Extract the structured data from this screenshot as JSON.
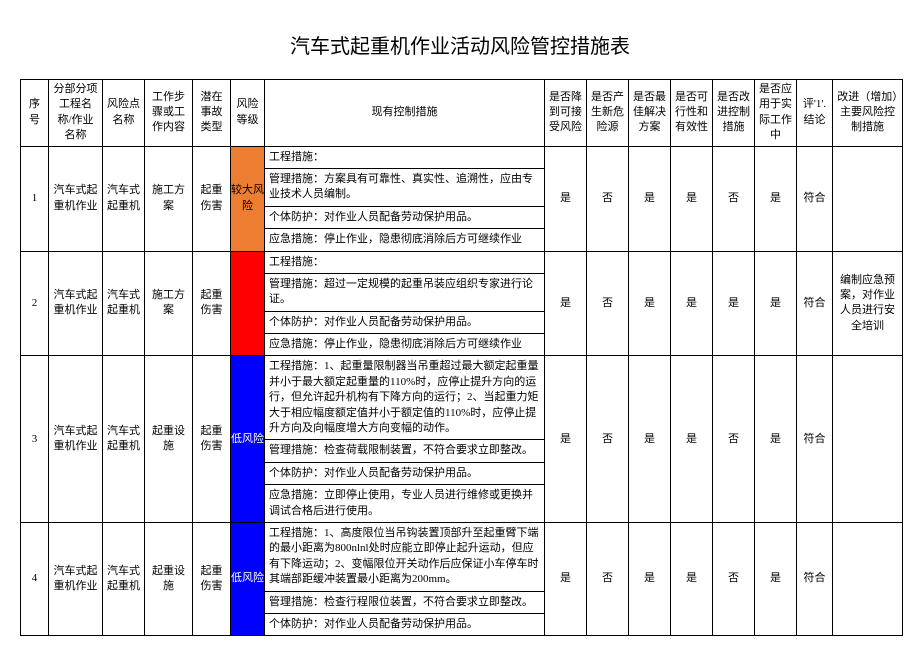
{
  "title": "汽车式起重机作业活动风险管控措施表",
  "headers": {
    "c1": "序号",
    "c2": "分部分项工程名称/作业名称",
    "c3": "风险点名称",
    "c4": "工作步骤或工作内容",
    "c5": "潜在事故类型",
    "c6": "风险等级",
    "c7": "现有控制措施",
    "c8": "是否降到可接受风险",
    "c9": "是否产生新危险源",
    "c10": "是否最佳解决方案",
    "c11": "是否可行性和有效性",
    "c12": "是否改进控制措施",
    "c13": "是否应用于实际工作中",
    "c14": "评'1'.结论",
    "c15": "改进（增加）主要风险控制措施"
  },
  "colwidths": [
    "28",
    "54",
    "42",
    "48",
    "38",
    "34",
    "280",
    "42",
    "42",
    "42",
    "42",
    "42",
    "42",
    "36",
    "70"
  ],
  "risk_colors": {
    "较大风险": "#ed7d31",
    "": "#ff0000",
    "低风险": "#0000ff"
  },
  "rows": [
    {
      "no": "1",
      "name": "汽车式起重机作业",
      "point": "汽车式起重机",
      "step": "施工方案",
      "acc": "起重伤害",
      "risk": "较大风险",
      "risk_class": "risk-orange",
      "measures": [
        "工程措施：",
        "管理措施：方案具有可靠性、真实性、追溯性，应由专业技术人员编制。",
        "个体防护：对作业人员配备劳动保护用品。",
        "应急措施：停止作业，隐患彻底消除后方可继续作业"
      ],
      "q8": "是",
      "q9": "否",
      "q10": "是",
      "q11": "是",
      "q12": "否",
      "q13": "是",
      "q14": "符合",
      "q15": ""
    },
    {
      "no": "2",
      "name": "汽车式起重机作业",
      "point": "汽车式起重机",
      "step": "施工方案",
      "acc": "起重伤害",
      "risk": "",
      "risk_class": "risk-red",
      "measures": [
        "工程措施：",
        "管理措施：超过一定规模的起重吊装应组织专家进行论证。",
        "个体防护：对作业人员配备劳动保护用品。",
        "应急措施：停止作业，隐患彻底消除后方可继续作业"
      ],
      "q8": "是",
      "q9": "否",
      "q10": "是",
      "q11": "是",
      "q12": "是",
      "q13": "是",
      "q14": "符合",
      "q15": "编制应急预案，对作业人员进行安全培训"
    },
    {
      "no": "3",
      "name": "汽车式起重机作业",
      "point": "汽车式起重机",
      "step": "起重设施",
      "acc": "起重伤害",
      "risk": "低风险",
      "risk_class": "risk-blue",
      "measures": [
        "工程措施：1、起重量限制器当吊重超过最大额定起重量并小于最大额定起重量的110%时，应停止提升方向的运行，但允许起升机构有下降方向的运行；2、当起重力矩大于相应幅度额定值并小于额定值的110%时，应停止提升方向及向幅度增大方向变幅的动作。",
        "管理措施：检查荷载限制装置，不符合要求立即整改。",
        "个体防护：对作业人员配备劳动保护用品。",
        "应急措施：立即停止使用，专业人员进行维修或更换并调试合格后进行使用。"
      ],
      "q8": "是",
      "q9": "否",
      "q10": "是",
      "q11": "是",
      "q12": "否",
      "q13": "是",
      "q14": "符合",
      "q15": ""
    },
    {
      "no": "4",
      "name": "汽车式起重机作业",
      "point": "汽车式起重机",
      "step": "起重设施",
      "acc": "起重伤害",
      "risk": "低风险",
      "risk_class": "risk-blue",
      "measures": [
        "工程措施：1、高度限位当吊钩装置顶部升至起重臂下端的最小距离为800nlnl处时应能立即停止起升运动，但应有下降运动；2、变幅限位开关动作后应保证小车停车时其端部距缓冲装置最小距离为200mm。",
        "管理措施：检查行程限位装置，不符合要求立即整改。",
        "个体防护：对作业人员配备劳动保护用品。"
      ],
      "q8": "是",
      "q9": "否",
      "q10": "是",
      "q11": "是",
      "q12": "否",
      "q13": "是",
      "q14": "符合",
      "q15": ""
    }
  ]
}
